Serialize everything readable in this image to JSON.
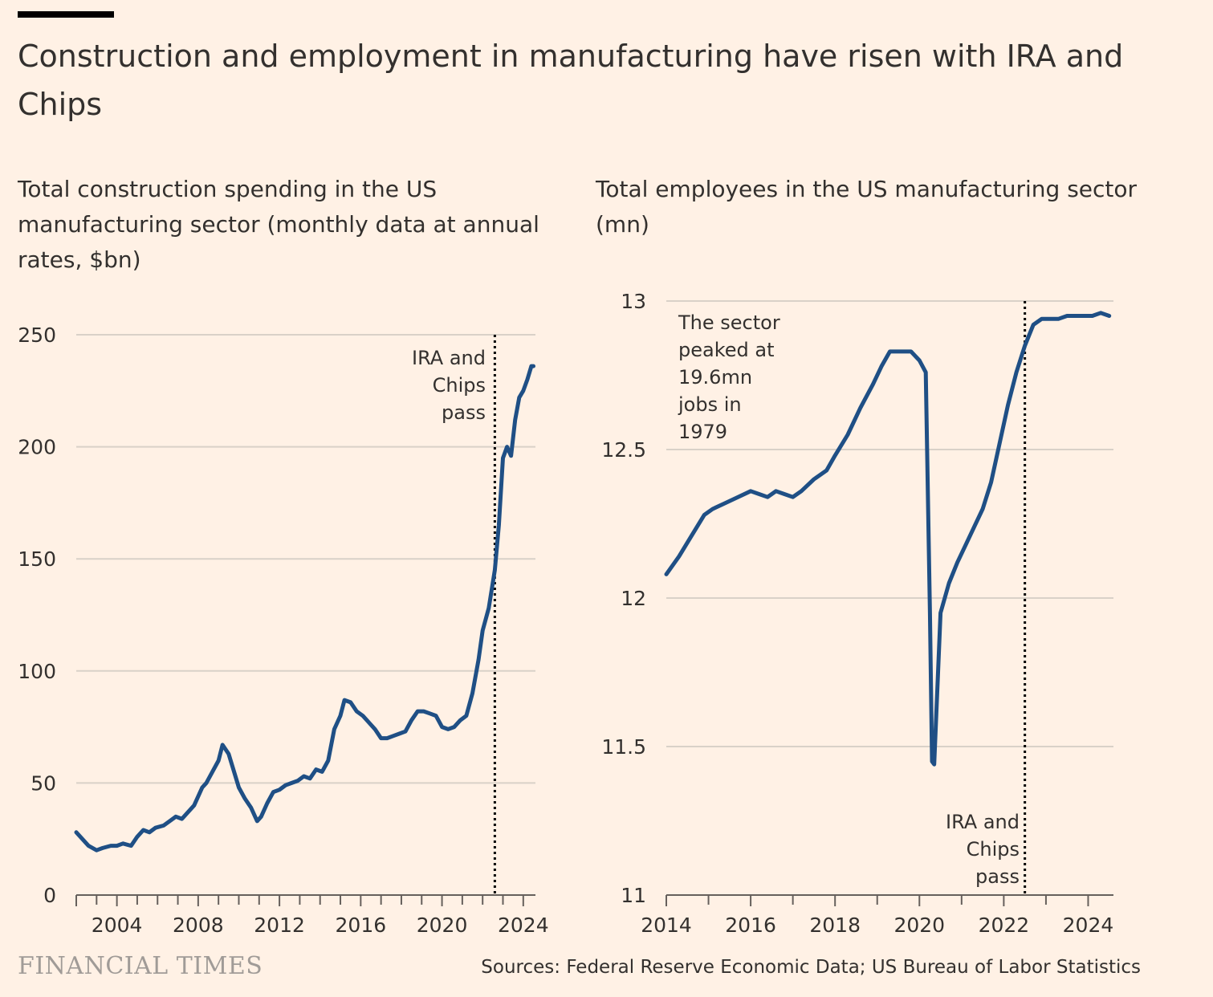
{
  "title": "Construction and employment in manufacturing have risen with IRA and Chips",
  "brand": "FINANCIAL TIMES",
  "source": "Sources: Federal Reserve Economic Data; US Bureau of Labor Statistics",
  "colors": {
    "line": "#1f4f85",
    "grid": "#d9d1c8",
    "axis": "#66605c",
    "background": "#fff1e5"
  },
  "chart_data": [
    {
      "type": "line",
      "subtitle": "Total construction spending in the US manufacturing sector (monthly data at annual rates, $bn)",
      "xlim": [
        2002,
        2024.6
      ],
      "ylim": [
        0,
        250
      ],
      "yticks": [
        0,
        50,
        100,
        150,
        200,
        250
      ],
      "xticks": [
        2004,
        2008,
        2012,
        2016,
        2020,
        2024
      ],
      "grid": true,
      "marker": {
        "x": 2022.6,
        "label": [
          "IRA and",
          "Chips",
          "pass"
        ]
      },
      "x": [
        2002.0,
        2002.3,
        2002.6,
        2003.0,
        2003.3,
        2003.7,
        2004.0,
        2004.3,
        2004.7,
        2005.0,
        2005.3,
        2005.6,
        2005.9,
        2006.3,
        2006.6,
        2006.9,
        2007.2,
        2007.5,
        2007.8,
        2008.2,
        2008.4,
        2008.7,
        2009.0,
        2009.2,
        2009.5,
        2009.7,
        2010.0,
        2010.3,
        2010.6,
        2010.9,
        2011.1,
        2011.4,
        2011.7,
        2012.0,
        2012.3,
        2012.6,
        2012.9,
        2013.2,
        2013.5,
        2013.8,
        2014.1,
        2014.4,
        2014.7,
        2015.0,
        2015.2,
        2015.5,
        2015.8,
        2016.1,
        2016.4,
        2016.7,
        2017.0,
        2017.3,
        2017.6,
        2017.9,
        2018.2,
        2018.5,
        2018.8,
        2019.1,
        2019.4,
        2019.7,
        2020.0,
        2020.3,
        2020.6,
        2020.9,
        2021.2,
        2021.5,
        2021.8,
        2022.0,
        2022.3,
        2022.6,
        2022.8,
        2023.0,
        2023.2,
        2023.4,
        2023.6,
        2023.8,
        2024.0,
        2024.2,
        2024.4,
        2024.5
      ],
      "values": [
        28,
        25,
        22,
        20,
        21,
        22,
        22,
        23,
        22,
        26,
        29,
        28,
        30,
        31,
        33,
        35,
        34,
        37,
        40,
        48,
        50,
        55,
        60,
        67,
        63,
        57,
        48,
        43,
        39,
        33,
        35,
        41,
        46,
        47,
        49,
        50,
        51,
        53,
        52,
        56,
        55,
        60,
        74,
        80,
        87,
        86,
        82,
        80,
        77,
        74,
        70,
        70,
        71,
        72,
        73,
        78,
        82,
        82,
        81,
        80,
        75,
        74,
        75,
        78,
        80,
        90,
        105,
        118,
        128,
        145,
        165,
        195,
        200,
        196,
        212,
        222,
        225,
        230,
        236,
        236
      ]
    },
    {
      "type": "line",
      "subtitle": "Total employees in the US manufacturing sector (mn)",
      "xlim": [
        2014,
        2024.6
      ],
      "ylim": [
        11,
        13
      ],
      "yticks": [
        11,
        11.5,
        12,
        12.5,
        13
      ],
      "xticks": [
        2014,
        2016,
        2018,
        2020,
        2022,
        2024
      ],
      "grid": true,
      "marker": {
        "x": 2022.5,
        "label": [
          "IRA and",
          "Chips",
          "pass"
        ]
      },
      "annotation": [
        "The sector",
        "peaked at",
        "19.6mn",
        "jobs in",
        "1979"
      ],
      "x": [
        2014.0,
        2014.3,
        2014.6,
        2014.9,
        2015.1,
        2015.4,
        2015.7,
        2016.0,
        2016.2,
        2016.4,
        2016.6,
        2016.8,
        2017.0,
        2017.2,
        2017.5,
        2017.8,
        2018.0,
        2018.3,
        2018.6,
        2018.9,
        2019.1,
        2019.3,
        2019.5,
        2019.8,
        2020.0,
        2020.15,
        2020.25,
        2020.3,
        2020.35,
        2020.5,
        2020.7,
        2020.9,
        2021.1,
        2021.3,
        2021.5,
        2021.7,
        2021.9,
        2022.1,
        2022.3,
        2022.5,
        2022.7,
        2022.9,
        2023.1,
        2023.3,
        2023.5,
        2023.7,
        2023.9,
        2024.1,
        2024.3,
        2024.5
      ],
      "values": [
        12.08,
        12.14,
        12.21,
        12.28,
        12.3,
        12.32,
        12.34,
        12.36,
        12.35,
        12.34,
        12.36,
        12.35,
        12.34,
        12.36,
        12.4,
        12.43,
        12.48,
        12.55,
        12.64,
        12.72,
        12.78,
        12.83,
        12.83,
        12.83,
        12.8,
        12.76,
        11.95,
        11.45,
        11.44,
        11.95,
        12.05,
        12.12,
        12.18,
        12.24,
        12.3,
        12.39,
        12.52,
        12.65,
        12.76,
        12.85,
        12.92,
        12.94,
        12.94,
        12.94,
        12.95,
        12.95,
        12.95,
        12.95,
        12.96,
        12.95
      ]
    }
  ]
}
